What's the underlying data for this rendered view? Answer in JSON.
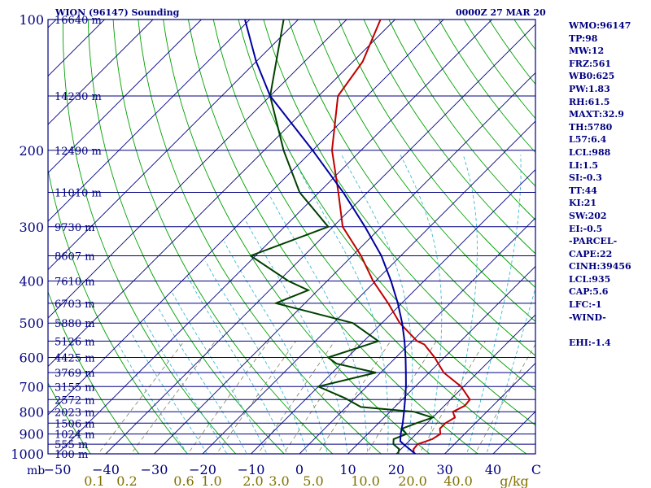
{
  "header": {
    "station": "WION (96147) Sounding",
    "time": "0000Z 27 MAR 20"
  },
  "indices": [
    "WMO:96147",
    "TP:98",
    "MW:12",
    "FRZ:561",
    "WB0:625",
    "PW:1.83",
    "RH:61.5",
    "MAXT:32.9",
    "TH:5780",
    "L57:6.4",
    "LCL:988",
    "LI:1.5",
    "SI:-0.3",
    "TT:44",
    "KI:21",
    "SW:202",
    "EI:-0.5",
    "-PARCEL-",
    "CAPE:22",
    "CINH:39456",
    "LCL:935",
    "CAP:5.6",
    "LFC:-1",
    "-WIND-",
    "",
    "EHI:-1.4"
  ],
  "colors": {
    "background": "#ffffff",
    "frame": "#000080",
    "isobar": "#000080",
    "isotherm": "#000080",
    "dry_adiabat": "#00a000",
    "moist_adiabat": "#40b8d0",
    "mixing_ratio": "#808060",
    "temperature": "#c00000",
    "dewpoint": "#004000",
    "parcel": "#0000a0",
    "pressure_label": "#000080",
    "temp_label": "#000080",
    "mix_label": "#807000"
  },
  "chart_data": {
    "type": "line",
    "subtype": "skew-t log-p sounding",
    "y_axis": {
      "units": "mb",
      "scale": "log",
      "range": [
        1000,
        100
      ],
      "ticks": [
        100,
        200,
        300,
        400,
        500,
        600,
        700,
        800,
        900,
        1000
      ]
    },
    "x_axis": {
      "units": "C",
      "range": [
        -50,
        50
      ],
      "ticks": [
        -50,
        -40,
        -30,
        -20,
        -10,
        0,
        10,
        20,
        30,
        40
      ]
    },
    "x_unit_label": "C",
    "y_unit_label": "mb",
    "mixing_ratio_unit_label": "g/kg",
    "mixing_ratio_labels": [
      "0.1",
      "0.2",
      "0.6",
      "1.0",
      "2.0",
      "3.0",
      "5.0",
      "10.0",
      "20.0",
      "40.0"
    ],
    "height_labels": [
      {
        "p": 100,
        "text": "16640 m"
      },
      {
        "p": 150,
        "text": "14230 m"
      },
      {
        "p": 200,
        "text": "12490 m"
      },
      {
        "p": 250,
        "text": "11010 m"
      },
      {
        "p": 300,
        "text": "9730 m"
      },
      {
        "p": 350,
        "text": "8607 m"
      },
      {
        "p": 400,
        "text": "7610 m"
      },
      {
        "p": 450,
        "text": "6703 m"
      },
      {
        "p": 500,
        "text": "5880 m"
      },
      {
        "p": 550,
        "text": "5126 m"
      },
      {
        "p": 600,
        "text": "4425 m"
      },
      {
        "p": 650,
        "text": "3769 m"
      },
      {
        "p": 700,
        "text": "3155 m"
      },
      {
        "p": 750,
        "text": "2572 m"
      },
      {
        "p": 800,
        "text": "2023 m"
      },
      {
        "p": 850,
        "text": "1506 m"
      },
      {
        "p": 900,
        "text": "1024 m"
      },
      {
        "p": 950,
        "text": "555 m"
      },
      {
        "p": 1000,
        "text": "100 m"
      }
    ],
    "series": [
      {
        "key": "temperature",
        "points": [
          [
            1008,
            24.6
          ],
          [
            1000,
            23.6
          ],
          [
            975,
            22.6
          ],
          [
            950,
            22.4
          ],
          [
            925,
            24.4
          ],
          [
            900,
            25.0
          ],
          [
            875,
            23.8
          ],
          [
            850,
            23.8
          ],
          [
            825,
            24.6
          ],
          [
            800,
            23.0
          ],
          [
            775,
            24.2
          ],
          [
            750,
            24.0
          ],
          [
            700,
            19.5
          ],
          [
            650,
            13.0
          ],
          [
            600,
            8.0
          ],
          [
            560,
            3.2
          ],
          [
            550,
            1.0
          ],
          [
            500,
            -6.3
          ],
          [
            450,
            -12.8
          ],
          [
            400,
            -20.5
          ],
          [
            350,
            -28.2
          ],
          [
            300,
            -38.0
          ],
          [
            250,
            -46.0
          ],
          [
            200,
            -56.0
          ],
          [
            150,
            -66.0
          ],
          [
            125,
            -68.0
          ],
          [
            100,
            -73.0
          ],
          [
            92,
            -75.0
          ]
        ]
      },
      {
        "key": "dewpoint",
        "points": [
          [
            1008,
            20.6
          ],
          [
            975,
            19.6
          ],
          [
            950,
            17.4
          ],
          [
            925,
            16.4
          ],
          [
            900,
            18.0
          ],
          [
            875,
            16.0
          ],
          [
            850,
            17.8
          ],
          [
            825,
            20.0
          ],
          [
            800,
            15.0
          ],
          [
            780,
            3.0
          ],
          [
            745,
            -2.0
          ],
          [
            700,
            -10.0
          ],
          [
            650,
            -1.0
          ],
          [
            620,
            -11.0
          ],
          [
            600,
            -14.0
          ],
          [
            550,
            -7.0
          ],
          [
            500,
            -16.0
          ],
          [
            450,
            -36.0
          ],
          [
            420,
            -32.0
          ],
          [
            400,
            -38.0
          ],
          [
            350,
            -51.0
          ],
          [
            300,
            -41.0
          ],
          [
            250,
            -54.0
          ],
          [
            200,
            -66.0
          ],
          [
            150,
            -80.0
          ],
          [
            100,
            -93.0
          ],
          [
            92,
            -95.0
          ]
        ]
      },
      {
        "key": "parcel",
        "points": [
          [
            1008,
            24.6
          ],
          [
            950,
            19.5
          ],
          [
            935,
            18.2
          ],
          [
            900,
            16.8
          ],
          [
            850,
            15.0
          ],
          [
            800,
            12.9
          ],
          [
            750,
            10.6
          ],
          [
            700,
            8.1
          ],
          [
            650,
            5.2
          ],
          [
            600,
            2.0
          ],
          [
            550,
            -1.6
          ],
          [
            500,
            -5.8
          ],
          [
            450,
            -10.8
          ],
          [
            400,
            -16.8
          ],
          [
            350,
            -24.0
          ],
          [
            300,
            -33.4
          ],
          [
            250,
            -45.0
          ],
          [
            200,
            -60.0
          ],
          [
            150,
            -80.0
          ],
          [
            125,
            -90.0
          ],
          [
            100,
            -101.0
          ],
          [
            92,
            -104.0
          ]
        ]
      }
    ],
    "grid": true,
    "legend": "none"
  }
}
